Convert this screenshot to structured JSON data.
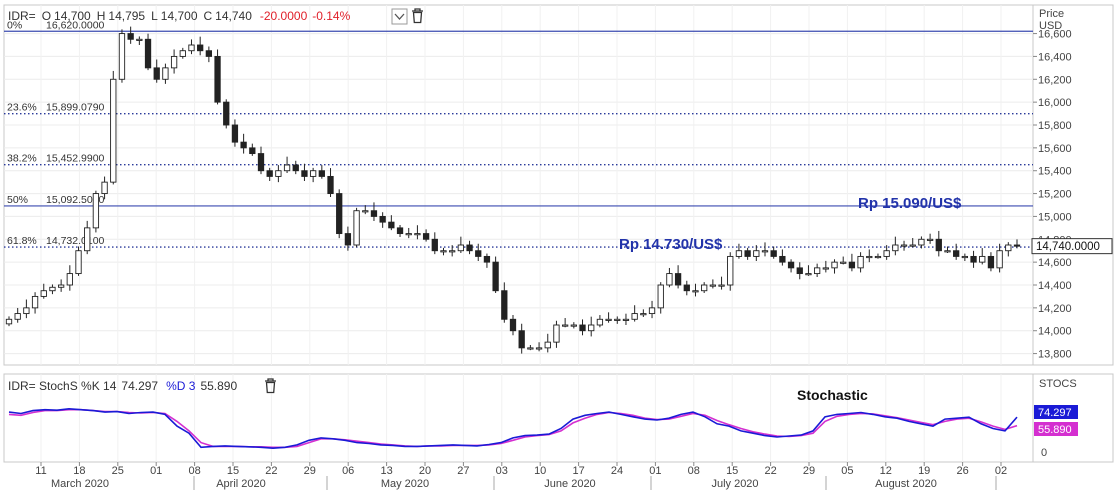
{
  "header": {
    "symbol": "IDR=",
    "open_label": "O",
    "open": "14,700",
    "high_label": "H",
    "high": "14,795",
    "low_label": "L",
    "low": "14,700",
    "close_label": "C",
    "close": "14,740",
    "change": "-20.0000",
    "change_pct": "-0.14%"
  },
  "price_axis": {
    "title_line1": "Price",
    "title_line2": "USD"
  },
  "stoch_panel": {
    "label": "IDR= StochS %K 14",
    "k_value": "74.297",
    "d_label": "%D 3",
    "d_value": "55.890",
    "axis_title": "STOCS",
    "annotation": "Stochastic",
    "k_color": "#1a1ad6",
    "d_color": "#d42fd0"
  },
  "annotations": {
    "level_high": "Rp 15.090/US$",
    "level_low": "Rp 14.730/US$",
    "color": "#2233aa"
  },
  "last_price_badge": "14,740.0000",
  "x_axis": {
    "day_ticks": [
      "11",
      "18",
      "25",
      "01",
      "08",
      "15",
      "22",
      "29",
      "06",
      "13",
      "20",
      "27",
      "03",
      "10",
      "17",
      "24",
      "01",
      "08",
      "15",
      "22",
      "29",
      "05",
      "12",
      "19",
      "26",
      "02"
    ],
    "months": [
      "March 2020",
      "April 2020",
      "May 2020",
      "June 2020",
      "July 2020",
      "August 2020"
    ]
  },
  "chart_data": {
    "type": "candlestick",
    "ylim": [
      13700,
      16850
    ],
    "y_ticks": [
      13800,
      14000,
      14200,
      14400,
      14600,
      14800,
      15000,
      15200,
      15400,
      15600,
      15800,
      16000,
      16200,
      16400,
      16600
    ],
    "y_tick_labels": [
      "13,800",
      "14,000",
      "14,200",
      "14,400",
      "14,600",
      "14,800",
      "15,000",
      "15,200",
      "15,400",
      "15,600",
      "15,800",
      "16,000",
      "16,200",
      "16,400",
      "16,600"
    ],
    "fibonacci": [
      {
        "pct": "0%",
        "label": "16,620.0000",
        "value": 16620,
        "style": "solid"
      },
      {
        "pct": "23.6%",
        "label": "15,899.0790",
        "value": 15899,
        "style": "dotted"
      },
      {
        "pct": "38.2%",
        "label": "15,452.9900",
        "value": 15453,
        "style": "dotted"
      },
      {
        "pct": "50%",
        "label": "15,092.5000",
        "value": 15092,
        "style": "solid"
      },
      {
        "pct": "61.8%",
        "label": "14,732.0100",
        "value": 14732,
        "style": "dotted"
      }
    ],
    "close": [
      14100,
      14150,
      14200,
      14300,
      14350,
      14380,
      14400,
      14500,
      14700,
      14900,
      15200,
      15300,
      16200,
      16600,
      16550,
      16550,
      16300,
      16200,
      16300,
      16400,
      16450,
      16500,
      16450,
      16400,
      16000,
      15800,
      15650,
      15600,
      15550,
      15400,
      15350,
      15400,
      15450,
      15400,
      15350,
      15400,
      15350,
      15200,
      14850,
      14750,
      15050,
      15050,
      15000,
      14950,
      14900,
      14850,
      14850,
      14850,
      14800,
      14700,
      14700,
      14700,
      14750,
      14700,
      14650,
      14600,
      14350,
      14100,
      14000,
      13850,
      13850,
      13850,
      13900,
      14050,
      14050,
      14050,
      14000,
      14050,
      14100,
      14100,
      14100,
      14100,
      14150,
      14150,
      14200,
      14400,
      14500,
      14400,
      14350,
      14350,
      14400,
      14400,
      14400,
      14650,
      14700,
      14650,
      14700,
      14700,
      14650,
      14600,
      14550,
      14500,
      14500,
      14550,
      14550,
      14600,
      14600,
      14550,
      14650,
      14650,
      14650,
      14700,
      14750,
      14750,
      14750,
      14800,
      14800,
      14700,
      14700,
      14650,
      14650,
      14600,
      14650,
      14550,
      14700,
      14750,
      14740
    ],
    "stoch_k": [
      85,
      82,
      88,
      90,
      89,
      92,
      90,
      88,
      85,
      86,
      82,
      84,
      85,
      80,
      55,
      40,
      10,
      12,
      13,
      12,
      11,
      10,
      8,
      10,
      15,
      25,
      30,
      28,
      25,
      20,
      18,
      15,
      14,
      12,
      12,
      13,
      14,
      15,
      14,
      13,
      16,
      20,
      30,
      35,
      36,
      38,
      50,
      70,
      78,
      82,
      85,
      80,
      75,
      70,
      68,
      72,
      80,
      85,
      75,
      60,
      55,
      45,
      40,
      35,
      32,
      34,
      36,
      45,
      75,
      80,
      82,
      84,
      80,
      75,
      72,
      65,
      60,
      55,
      70,
      72,
      74,
      60,
      50,
      45,
      74.3
    ],
    "stoch_d": [
      80,
      78,
      84,
      88,
      88,
      90,
      90,
      88,
      86,
      86,
      84,
      83,
      84,
      82,
      65,
      45,
      20,
      12,
      12,
      12,
      11,
      11,
      10,
      10,
      12,
      20,
      28,
      28,
      26,
      23,
      20,
      17,
      15,
      13,
      12,
      13,
      13,
      14,
      14,
      14,
      15,
      18,
      25,
      32,
      35,
      37,
      45,
      62,
      72,
      80,
      84,
      82,
      78,
      72,
      69,
      70,
      76,
      82,
      78,
      67,
      58,
      50,
      43,
      38,
      34,
      33,
      35,
      40,
      65,
      76,
      80,
      82,
      81,
      77,
      73,
      68,
      63,
      58,
      65,
      70,
      72,
      64,
      55,
      48,
      55.9
    ]
  }
}
